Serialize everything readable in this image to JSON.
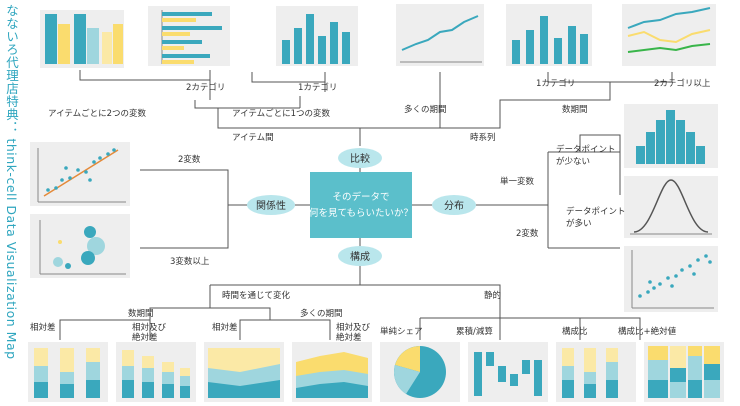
{
  "side_title": "なないろ代理店特典： think-cell Data Visualization Map",
  "center_question": [
    "そのデータで",
    "何を見てもらいたいか？"
  ],
  "hubs": {
    "comparison": "比較",
    "relationship": "関係性",
    "distribution": "分布",
    "composition": "構成"
  },
  "comparison": {
    "among_items": "アイテム間",
    "time_series": "時系列",
    "two_vars_per_item": "アイテムごとに2つの変数",
    "one_var_per_item": "アイテムごとに1つの変数",
    "many_periods": "多くの期間",
    "few_periods": "数期間",
    "two_categories": "2カテゴリ",
    "one_category_a": "1カテゴリ",
    "one_category_b": "1カテゴリ",
    "two_plus_categories": "2カテゴリ以上"
  },
  "relationship": {
    "two_vars": "2変数",
    "three_plus_vars": "3変数以上"
  },
  "distribution": {
    "single_var": "単一変数",
    "two_vars": "2変数",
    "few_points": [
      "データポイント",
      "が少ない"
    ],
    "many_points": [
      "データポイント",
      "が多い"
    ]
  },
  "composition": {
    "changes_over_time": "時間を通じて変化",
    "static": "静的",
    "few_periods": "数期間",
    "many_periods": "多くの期間",
    "relative": "相対差",
    "relative_and_absolute": [
      "相対及び",
      "絶対差"
    ],
    "relative_b": "相対差",
    "relative_and_absolute_b": [
      "相対及び",
      "絶対差"
    ],
    "simple_share": "単純シェア",
    "accumulate": "累積/減算",
    "ratio": "構成比",
    "ratio_absolute": "構成比+絶対値"
  },
  "colors": {
    "teal": "#3aa8bd",
    "teal_light": "#9fd6de",
    "yellow": "#fadc6e",
    "yellow_light": "#fbe9a6",
    "panel": "#eeeeee",
    "hub": "#b9e6ec",
    "line": "#555555"
  }
}
